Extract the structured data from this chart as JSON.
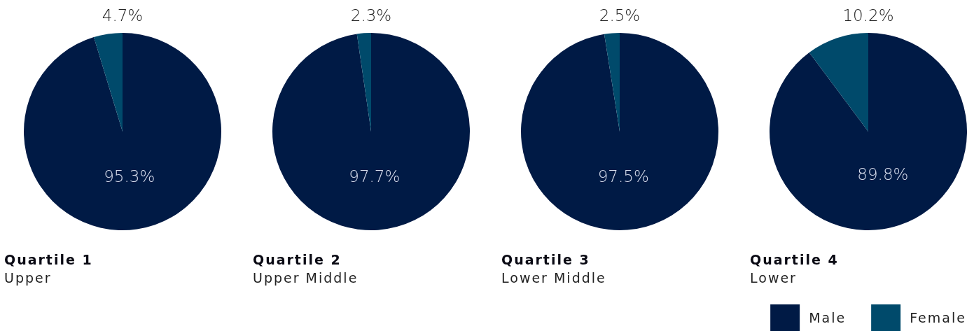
{
  "chart_data": [
    {
      "type": "pie",
      "title": "Quartile 1",
      "subtitle": "Upper",
      "categories": [
        null,
        null
      ],
      "values": [
        95.3,
        4.7
      ],
      "value_labels": [
        "95.3%",
        "4.7%"
      ],
      "colors": [
        "#001a45",
        "#004a6b"
      ],
      "legend": false
    },
    {
      "type": "pie",
      "title": "Quartile 2",
      "subtitle": "Upper Middle",
      "categories": [
        null,
        null
      ],
      "values": [
        97.7,
        2.3
      ],
      "value_labels": [
        "97.7%",
        "2.3%"
      ],
      "colors": [
        "#001a45",
        "#004a6b"
      ],
      "legend": false
    },
    {
      "type": "pie",
      "title": "Quartile 3",
      "subtitle": "Lower Middle",
      "categories": [
        null,
        null
      ],
      "values": [
        97.5,
        2.5
      ],
      "value_labels": [
        "97.5%",
        "2.5%"
      ],
      "colors": [
        "#001a45",
        "#004a6b"
      ],
      "legend": false
    },
    {
      "type": "pie",
      "title": "Quartile 4",
      "subtitle": "Lower",
      "categories": [
        "Male",
        "Female"
      ],
      "values": [
        89.8,
        10.2
      ],
      "value_labels": [
        "89.8%",
        "10.2%"
      ],
      "colors": [
        "#001a45",
        "#004a6b"
      ],
      "legend": "bottom"
    }
  ]
}
